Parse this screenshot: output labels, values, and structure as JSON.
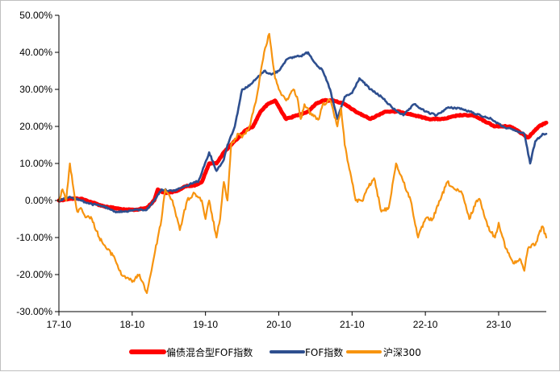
{
  "chart_data": {
    "type": "line",
    "title": "",
    "xlabel": "",
    "ylabel": "",
    "x_ticks": [
      "17-10",
      "18-10",
      "19-10",
      "20-10",
      "21-10",
      "22-10",
      "23-10"
    ],
    "y_ticks": [
      "50.00%",
      "40.00%",
      "30.00%",
      "20.00%",
      "10.00%",
      "0.00%",
      "-10.00%",
      "-20.00%",
      "-30.00%"
    ],
    "ylim": [
      -30,
      50
    ],
    "xlim": [
      2017.75,
      2024.4
    ],
    "grid": false,
    "legend_position": "bottom",
    "series": [
      {
        "name": "偏债混合型FOF指数",
        "color": "#ff0000",
        "x": [
          2017.75,
          2017.9,
          2018.05,
          2018.2,
          2018.35,
          2018.5,
          2018.65,
          2018.8,
          2018.95,
          2019.05,
          2019.1,
          2019.2,
          2019.35,
          2019.5,
          2019.6,
          2019.7,
          2019.8,
          2019.9,
          2020.0,
          2020.1,
          2020.2,
          2020.3,
          2020.4,
          2020.5,
          2020.6,
          2020.7,
          2020.85,
          2021.0,
          2021.15,
          2021.25,
          2021.35,
          2021.5,
          2021.65,
          2021.8,
          2022.0,
          2022.2,
          2022.4,
          2022.6,
          2022.8,
          2023.0,
          2023.2,
          2023.4,
          2023.5,
          2023.6,
          2023.7,
          2023.8,
          2023.9,
          2024.0,
          2024.15,
          2024.3,
          2024.4
        ],
        "values": [
          0,
          0.5,
          0.5,
          -0.5,
          -1.5,
          -2.0,
          -2.5,
          -2.5,
          -2.0,
          0,
          3,
          2,
          2.5,
          4,
          4,
          5,
          10,
          10,
          13,
          15,
          17,
          19,
          20,
          24,
          26,
          27,
          22,
          23,
          24,
          26,
          27,
          27,
          26,
          24,
          22,
          24,
          24,
          23,
          22,
          22,
          23,
          23,
          22,
          21,
          20,
          20,
          20,
          19,
          17,
          20,
          21
        ]
      },
      {
        "name": "FOF指数",
        "color": "#2e4f8f",
        "x": [
          2017.75,
          2017.9,
          2018.05,
          2018.2,
          2018.35,
          2018.5,
          2018.65,
          2018.8,
          2018.95,
          2019.05,
          2019.15,
          2019.3,
          2019.5,
          2019.6,
          2019.65,
          2019.8,
          2019.9,
          2020.0,
          2020.05,
          2020.15,
          2020.25,
          2020.35,
          2020.45,
          2020.55,
          2020.65,
          2020.75,
          2020.85,
          2021.0,
          2021.05,
          2021.15,
          2021.25,
          2021.35,
          2021.45,
          2021.55,
          2021.65,
          2021.75,
          2021.85,
          2022.0,
          2022.15,
          2022.3,
          2022.45,
          2022.6,
          2022.75,
          2022.9,
          2023.05,
          2023.2,
          2023.35,
          2023.5,
          2023.65,
          2023.8,
          2023.95,
          2024.1,
          2024.18,
          2024.25,
          2024.35,
          2024.4
        ],
        "values": [
          0,
          1,
          0,
          -1,
          -1.5,
          -3,
          -3,
          -2.5,
          -2.5,
          0,
          3,
          2.5,
          4,
          5,
          5,
          13,
          8,
          11,
          15,
          20,
          30,
          31,
          33,
          35,
          34,
          35,
          38,
          39,
          39,
          40,
          37,
          35,
          30,
          22,
          28,
          29,
          33,
          30,
          28,
          25,
          23,
          26,
          24,
          23,
          25,
          25,
          24,
          23,
          22,
          20,
          19,
          18,
          10,
          16,
          18,
          18
        ]
      },
      {
        "name": "沪深300",
        "color": "#f79410",
        "x": [
          2017.75,
          2017.8,
          2017.85,
          2017.9,
          2017.95,
          2018.0,
          2018.05,
          2018.1,
          2018.2,
          2018.3,
          2018.4,
          2018.5,
          2018.6,
          2018.7,
          2018.75,
          2018.85,
          2018.95,
          2019.05,
          2019.1,
          2019.15,
          2019.2,
          2019.3,
          2019.4,
          2019.5,
          2019.6,
          2019.7,
          2019.75,
          2019.8,
          2019.9,
          2019.95,
          2020.0,
          2020.05,
          2020.1,
          2020.2,
          2020.25,
          2020.35,
          2020.45,
          2020.55,
          2020.62,
          2020.7,
          2020.75,
          2020.85,
          2020.95,
          2021.0,
          2021.05,
          2021.1,
          2021.2,
          2021.3,
          2021.35,
          2021.45,
          2021.55,
          2021.6,
          2021.65,
          2021.75,
          2021.8,
          2021.9,
          2021.95,
          2022.05,
          2022.15,
          2022.25,
          2022.35,
          2022.45,
          2022.55,
          2022.65,
          2022.75,
          2022.85,
          2022.95,
          2023.05,
          2023.15,
          2023.25,
          2023.35,
          2023.45,
          2023.5,
          2023.6,
          2023.7,
          2023.75,
          2023.85,
          2023.9,
          2023.95,
          2024.05,
          2024.1,
          2024.15,
          2024.2,
          2024.25,
          2024.3,
          2024.35,
          2024.4
        ],
        "values": [
          0,
          3,
          0,
          10,
          3,
          -3,
          -2,
          -4,
          -5,
          -10,
          -13,
          -15,
          -20,
          -21,
          -22,
          -20,
          -25,
          -15,
          -10,
          -5,
          3,
          0,
          -8,
          0,
          2,
          0,
          -5,
          0,
          -10,
          -5,
          5,
          0,
          15,
          18,
          17,
          20,
          28,
          40,
          45,
          33,
          30,
          27,
          30,
          28,
          22,
          26,
          23,
          22,
          26,
          27,
          20,
          25,
          15,
          5,
          0,
          0,
          3,
          6,
          -3,
          -2,
          10,
          5,
          0,
          -10,
          -5,
          -5,
          0,
          5,
          3,
          2,
          -5,
          0,
          0,
          -7,
          -10,
          -6,
          -13,
          -15,
          -17,
          -16,
          -19,
          -13,
          -12,
          -12,
          -9,
          -7,
          -10
        ]
      }
    ]
  }
}
